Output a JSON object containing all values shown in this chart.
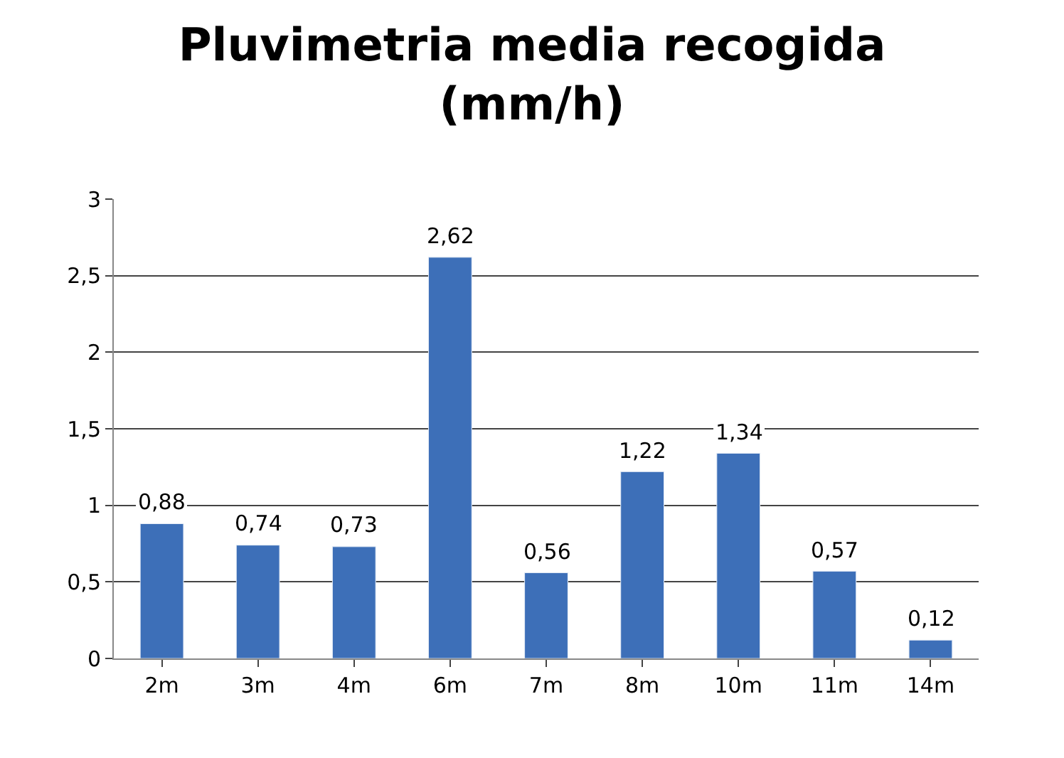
{
  "chart_data": {
    "type": "bar",
    "title": "Pluvimetria media recogida (mm/h)",
    "categories": [
      "2m",
      "3m",
      "4m",
      "6m",
      "7m",
      "8m",
      "10m",
      "11m",
      "14m"
    ],
    "values": [
      0.88,
      0.74,
      0.73,
      2.62,
      0.56,
      1.22,
      1.34,
      0.57,
      0.12
    ],
    "value_labels": [
      "0,88",
      "0,74",
      "0,73",
      "2,62",
      "0,56",
      "1,22",
      "1,34",
      "0,57",
      "0,12"
    ],
    "color": "#3d6fb8",
    "ylim": [
      0,
      3
    ],
    "yticks": [
      0,
      {
        "value": 0.5,
        "label": "0,5"
      },
      1,
      {
        "value": 1.5,
        "label": "1,5"
      },
      2,
      {
        "value": 2.5,
        "label": "2,5"
      },
      3
    ],
    "grid": "y"
  }
}
